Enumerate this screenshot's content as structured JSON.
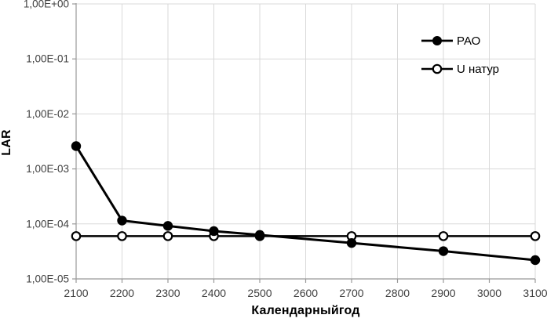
{
  "chart_data": {
    "type": "line",
    "title": "",
    "xlabel": "Календарныйгод",
    "ylabel": "LAR",
    "x_scale": "linear",
    "y_scale": "log",
    "xlim": [
      2100,
      3100
    ],
    "ylim": [
      1e-05,
      1
    ],
    "grid": true,
    "legend_position": "top-right",
    "x_ticks": [
      2100,
      2200,
      2300,
      2400,
      2500,
      2600,
      2700,
      2800,
      2900,
      3000,
      3100
    ],
    "x_tick_labels": [
      "2100",
      "2200",
      "2300",
      "2400",
      "2500",
      "2600",
      "2700",
      "2800",
      "2900",
      "3000",
      "3100"
    ],
    "y_ticks": [
      1,
      0.1,
      0.01,
      0.001,
      0.0001,
      1e-05
    ],
    "y_tick_labels": [
      "1,00E+00",
      "1,00E-01",
      "1,00E-02",
      "1,00E-03",
      "1,00E-04",
      "1,00E-05"
    ],
    "x": [
      2100,
      2200,
      2300,
      2400,
      2500,
      2700,
      2900,
      3100
    ],
    "series": [
      {
        "name": "РАО",
        "marker": "filled-circle",
        "values": [
          0.0026,
          0.000115,
          9.2e-05,
          7.4e-05,
          6.3e-05,
          4.5e-05,
          3.2e-05,
          2.2e-05
        ]
      },
      {
        "name": "U натур",
        "marker": "open-circle",
        "values": [
          6e-05,
          6e-05,
          6e-05,
          6e-05,
          6e-05,
          6e-05,
          6e-05,
          6e-05
        ]
      }
    ]
  },
  "styles": {
    "background": "#ffffff",
    "grid_color": "#d9d9d9",
    "axis_color": "#999999",
    "tick_label_color": "#404040",
    "series_color": "#000000"
  }
}
